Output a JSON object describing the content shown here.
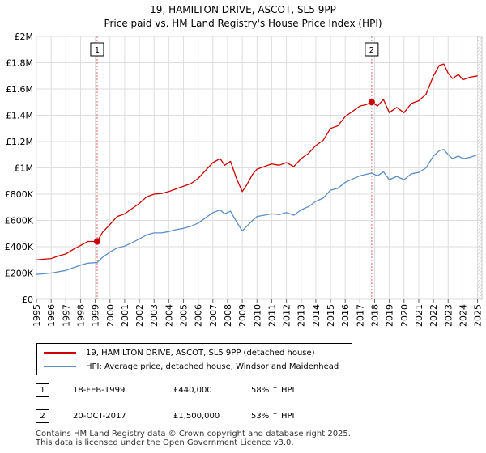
{
  "chart_data": {
    "type": "line",
    "title": "19, HAMILTON DRIVE, ASCOT, SL5 9PP",
    "subtitle": "Price paid vs. HM Land Registry's House Price Index (HPI)",
    "xlim": [
      1995,
      2025.3
    ],
    "ylim": [
      0,
      2000000
    ],
    "x_ticks": [
      1995,
      1996,
      1997,
      1998,
      1999,
      2000,
      2001,
      2002,
      2003,
      2004,
      2005,
      2006,
      2007,
      2008,
      2009,
      2010,
      2011,
      2012,
      2013,
      2014,
      2015,
      2016,
      2017,
      2018,
      2019,
      2020,
      2021,
      2022,
      2023,
      2024,
      2025
    ],
    "y_ticks": [
      {
        "value": 0,
        "label": "£0"
      },
      {
        "value": 200000,
        "label": "£200K"
      },
      {
        "value": 400000,
        "label": "£400K"
      },
      {
        "value": 600000,
        "label": "£600K"
      },
      {
        "value": 800000,
        "label": "£800K"
      },
      {
        "value": 1000000,
        "label": "£1M"
      },
      {
        "value": 1200000,
        "label": "£1.2M"
      },
      {
        "value": 1400000,
        "label": "£1.4M"
      },
      {
        "value": 1600000,
        "label": "£1.6M"
      },
      {
        "value": 1800000,
        "label": "£1.8M"
      },
      {
        "value": 2000000,
        "label": "£2M"
      }
    ],
    "grid": true,
    "series": [
      {
        "name": "19, HAMILTON DRIVE, ASCOT, SL5 9PP (detached house)",
        "color": "#cc0000",
        "x": [
          1995.0,
          1995.5,
          1996.0,
          1996.5,
          1997.0,
          1997.5,
          1998.0,
          1998.5,
          1999.13,
          1999.5,
          2000.0,
          2000.5,
          2001.0,
          2001.5,
          2002.0,
          2002.5,
          2003.0,
          2003.5,
          2004.0,
          2004.5,
          2005.0,
          2005.5,
          2006.0,
          2006.5,
          2007.0,
          2007.5,
          2007.8,
          2008.2,
          2008.6,
          2009.0,
          2009.3,
          2009.7,
          2010.0,
          2010.5,
          2011.0,
          2011.5,
          2012.0,
          2012.5,
          2013.0,
          2013.5,
          2014.0,
          2014.5,
          2015.0,
          2015.5,
          2016.0,
          2016.5,
          2017.0,
          2017.4,
          2017.8,
          2018.2,
          2018.6,
          2019.0,
          2019.5,
          2020.0,
          2020.5,
          2021.0,
          2021.5,
          2022.0,
          2022.4,
          2022.7,
          2023.0,
          2023.3,
          2023.7,
          2024.0,
          2024.5,
          2025.0
        ],
        "y": [
          300000,
          305000,
          310000,
          330000,
          345000,
          380000,
          410000,
          440000,
          440000,
          510000,
          570000,
          630000,
          650000,
          690000,
          730000,
          780000,
          800000,
          805000,
          820000,
          840000,
          860000,
          880000,
          920000,
          980000,
          1040000,
          1070000,
          1020000,
          1050000,
          920000,
          820000,
          870000,
          950000,
          990000,
          1010000,
          1030000,
          1020000,
          1040000,
          1010000,
          1070000,
          1110000,
          1170000,
          1210000,
          1300000,
          1320000,
          1390000,
          1430000,
          1470000,
          1480000,
          1500000,
          1470000,
          1520000,
          1420000,
          1460000,
          1420000,
          1490000,
          1510000,
          1560000,
          1700000,
          1780000,
          1790000,
          1720000,
          1680000,
          1710000,
          1670000,
          1690000,
          1700000
        ]
      },
      {
        "name": "HPI: Average price, detached house, Windsor and Maidenhead",
        "color": "#5b8ec7",
        "x": [
          1995.0,
          1995.5,
          1996.0,
          1996.5,
          1997.0,
          1997.5,
          1998.0,
          1998.5,
          1999.13,
          1999.5,
          2000.0,
          2000.5,
          2001.0,
          2001.5,
          2002.0,
          2002.5,
          2003.0,
          2003.5,
          2004.0,
          2004.5,
          2005.0,
          2005.5,
          2006.0,
          2006.5,
          2007.0,
          2007.5,
          2007.8,
          2008.2,
          2008.6,
          2009.0,
          2009.3,
          2009.7,
          2010.0,
          2010.5,
          2011.0,
          2011.5,
          2012.0,
          2012.5,
          2013.0,
          2013.5,
          2014.0,
          2014.5,
          2015.0,
          2015.5,
          2016.0,
          2016.5,
          2017.0,
          2017.4,
          2017.8,
          2018.2,
          2018.6,
          2019.0,
          2019.5,
          2020.0,
          2020.5,
          2021.0,
          2021.5,
          2022.0,
          2022.4,
          2022.7,
          2023.0,
          2023.3,
          2023.7,
          2024.0,
          2024.5,
          2025.0
        ],
        "y": [
          190000,
          195000,
          200000,
          210000,
          220000,
          240000,
          260000,
          275000,
          280000,
          320000,
          360000,
          390000,
          405000,
          430000,
          460000,
          490000,
          505000,
          505000,
          515000,
          530000,
          540000,
          555000,
          580000,
          620000,
          660000,
          680000,
          650000,
          670000,
          590000,
          520000,
          555000,
          600000,
          630000,
          640000,
          650000,
          645000,
          660000,
          640000,
          680000,
          705000,
          745000,
          770000,
          830000,
          845000,
          890000,
          915000,
          940000,
          950000,
          960000,
          940000,
          970000,
          910000,
          935000,
          910000,
          955000,
          965000,
          1000000,
          1090000,
          1130000,
          1140000,
          1100000,
          1070000,
          1090000,
          1070000,
          1080000,
          1100000
        ]
      }
    ],
    "annotations": [
      {
        "label": "1",
        "x": 1999.13,
        "y": 440000
      },
      {
        "label": "2",
        "x": 2017.8,
        "y": 1500000
      }
    ]
  },
  "legend": {
    "items": [
      {
        "label": "19, HAMILTON DRIVE, ASCOT, SL5 9PP (detached house)",
        "color": "#cc0000"
      },
      {
        "label": "HPI: Average price, detached house, Windsor and Maidenhead",
        "color": "#5b8ec7"
      }
    ]
  },
  "sales": [
    {
      "num": "1",
      "date": "18-FEB-1999",
      "price": "£440,000",
      "hpi": "58% ↑ HPI"
    },
    {
      "num": "2",
      "date": "20-OCT-2017",
      "price": "£1,500,000",
      "hpi": "53% ↑ HPI"
    }
  ],
  "footer": {
    "line1": "Contains HM Land Registry data © Crown copyright and database right 2025.",
    "line2": "This data is licensed under the Open Government Licence v3.0."
  }
}
